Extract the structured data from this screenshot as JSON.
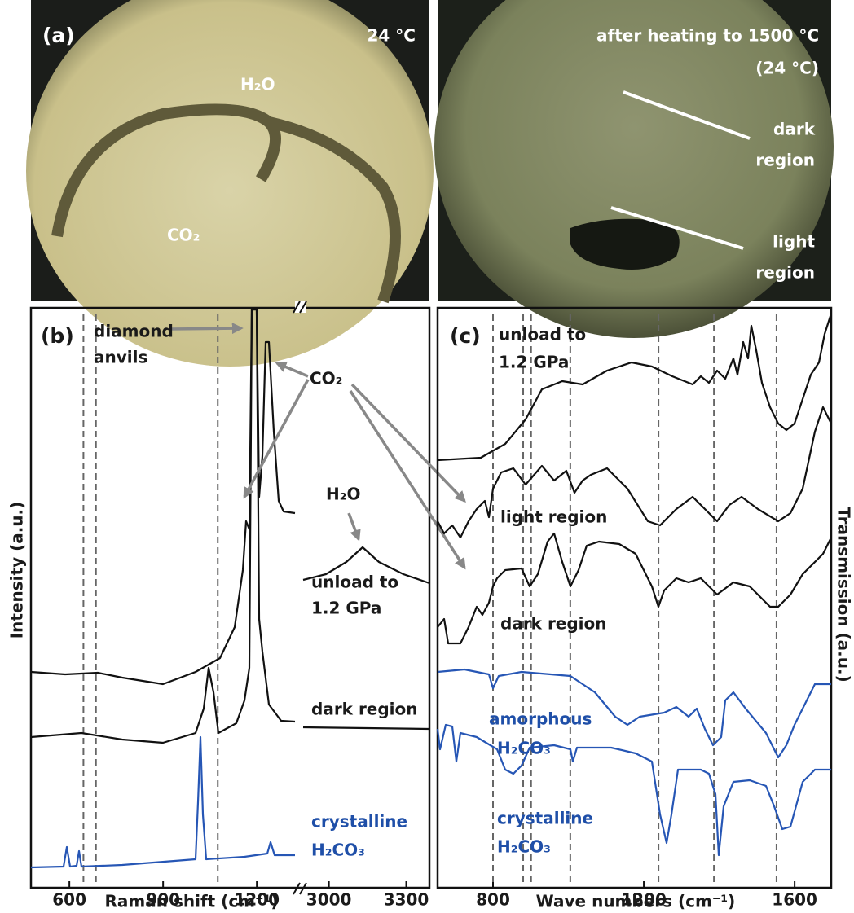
{
  "panel_a": {
    "label": "(a)",
    "left_photo": {
      "temperature": "24 °C",
      "labels": [
        "H₂O",
        "CO₂"
      ]
    },
    "right_photo": {
      "caption": [
        "after heating to 1500 °C",
        "(24 °C)"
      ],
      "labels": [
        [
          "dark",
          "region"
        ],
        [
          "light",
          "region"
        ]
      ]
    }
  },
  "panel_b": {
    "label": "(b)",
    "x_label": "Raman shift (cm⁻¹)",
    "y_label": "Intensity (a.u.)",
    "segments": [
      {
        "xlim": [
          477,
          1330
        ],
        "xticks": [
          600,
          900,
          1200
        ]
      },
      {
        "xlim": [
          2900,
          3390
        ],
        "xticks": [
          3000,
          3300
        ]
      }
    ],
    "guides": [
      645,
      685,
      1075
    ],
    "annotations": {
      "diamond": [
        "diamond",
        "anvils"
      ],
      "co2": "CO₂",
      "h2o": "H₂O",
      "unload": [
        "unload to",
        "1.2 GPa"
      ],
      "dark": "dark region",
      "crystalline": [
        "crystalline",
        "H₂CO₃"
      ]
    }
  },
  "panel_c": {
    "label": "(c)",
    "x_label": "Wave numbers (cm⁻¹)",
    "y_label": "Transmission (a.u.)",
    "xlim": [
      653,
      1697
    ],
    "xticks": [
      800,
      1200,
      1600
    ],
    "guides": [
      800,
      880,
      901,
      1005,
      1239,
      1386,
      1552
    ],
    "annotations": {
      "unload": [
        "unload to",
        "1.2 GPa"
      ],
      "light": "light region",
      "dark": "dark region",
      "amorphous": [
        "amorphous",
        "H₂CO₃"
      ],
      "crystalline": [
        "crystalline",
        "H₂CO₃"
      ]
    }
  }
}
